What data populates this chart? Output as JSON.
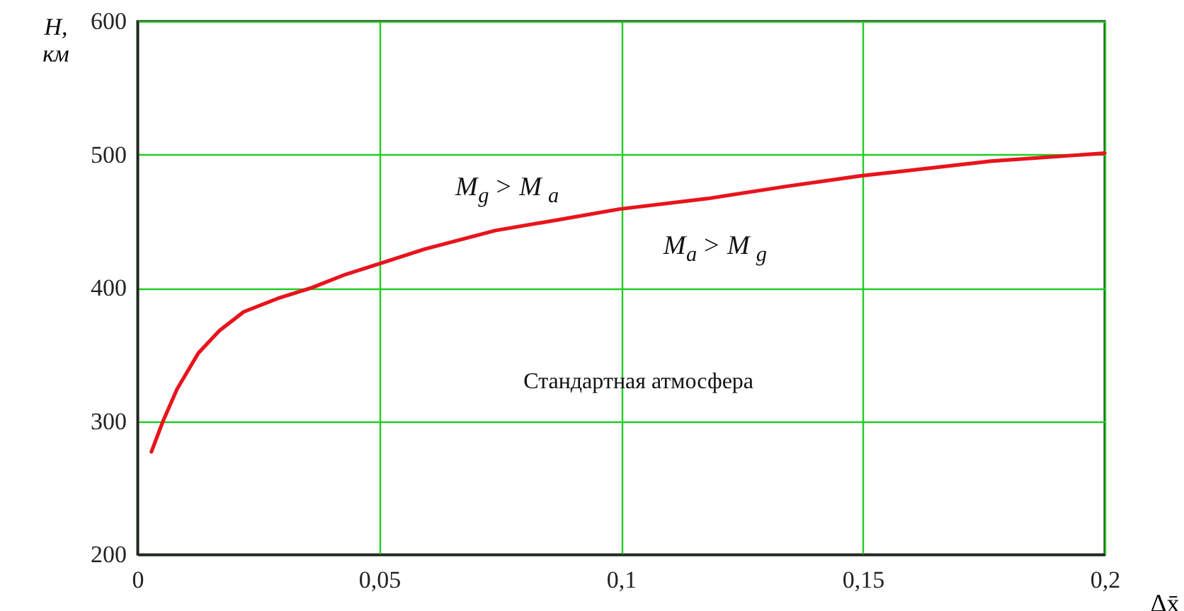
{
  "chart_data": {
    "type": "line",
    "xlabel": "Δx̄",
    "ylabel": "H, км",
    "x": [
      0.0029,
      0.0053,
      0.0082,
      0.0126,
      0.017,
      0.022,
      0.029,
      0.036,
      0.043,
      0.05,
      0.0594,
      0.074,
      0.087,
      0.0996,
      0.118,
      0.134,
      0.1496,
      0.1765,
      0.2
    ],
    "series": [
      {
        "color": "#e8141c",
        "values": [
          277,
          300,
          324,
          351,
          368,
          382,
          392,
          400,
          410,
          418,
          429,
          443,
          451,
          459,
          467,
          476,
          484,
          495,
          501
        ]
      }
    ],
    "xlim": [
      0,
      0.2
    ],
    "ylim": [
      200,
      600
    ],
    "xticks": [
      0,
      {
        "value": 0.05,
        "label": "0,05"
      },
      {
        "value": 0.1,
        "label": "0,1"
      },
      {
        "value": 0.15,
        "label": "0,15"
      },
      {
        "value": 0.2,
        "label": "0,2"
      }
    ],
    "yticks": [
      200,
      300,
      400,
      500,
      600
    ],
    "grid": true,
    "marker": "none",
    "line_style": "solid",
    "annotations": [
      "M$_{g}$ > M$_{a}$",
      "M$_{a}$ > M$_{g}$",
      "Стандартная атмосфера"
    ]
  }
}
